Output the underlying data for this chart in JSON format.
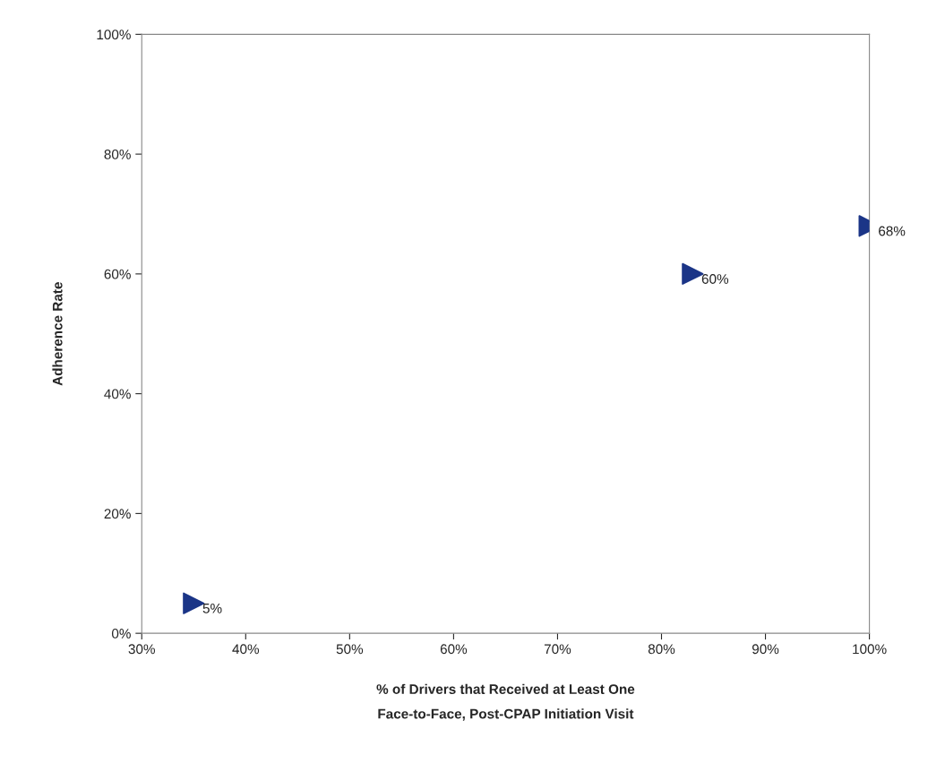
{
  "chart_data": {
    "type": "scatter",
    "xlabel": "% of Drivers that Received at Least One\nFace-to-Face, Post-CPAP Initiation Visit",
    "ylabel": "Adherence Rate",
    "x": [
      35,
      83,
      100
    ],
    "series": [
      {
        "color": "#1b3587",
        "values": [
          5,
          60,
          68
        ],
        "value_labels": [
          "5%",
          "60%",
          "68%"
        ]
      }
    ],
    "marker": "triangle",
    "grid": false,
    "legend": false,
    "xlim": [
      30,
      100
    ],
    "xticks": [
      {
        "value": 30,
        "label": "30%"
      },
      {
        "value": 40,
        "label": "40%"
      },
      {
        "value": 50,
        "label": "50%"
      },
      {
        "value": 60,
        "label": "60%"
      },
      {
        "value": 70,
        "label": "70%"
      },
      {
        "value": 80,
        "label": "80%"
      },
      {
        "value": 90,
        "label": "90%"
      },
      {
        "value": 100,
        "label": "100%"
      }
    ],
    "ylim": [
      0,
      100
    ],
    "yticks": [
      {
        "value": 0,
        "label": "0%"
      },
      {
        "value": 20,
        "label": "20%"
      },
      {
        "value": 40,
        "label": "40%"
      },
      {
        "value": 60,
        "label": "60%"
      },
      {
        "value": 80,
        "label": "80%"
      },
      {
        "value": 100,
        "label": "100%"
      }
    ]
  }
}
